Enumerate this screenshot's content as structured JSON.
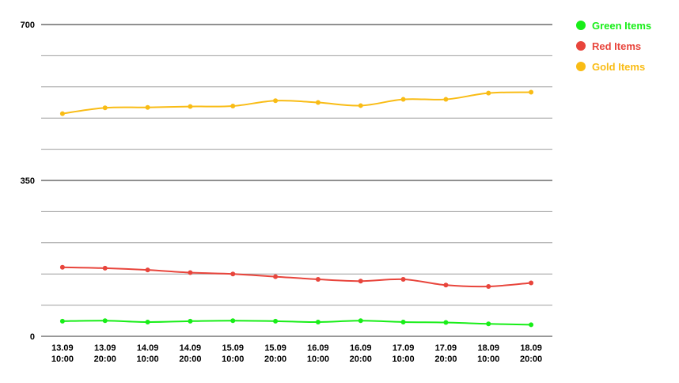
{
  "chart_data": {
    "type": "line",
    "title": "",
    "xlabel": "",
    "ylabel": "",
    "ylim": [
      0,
      700
    ],
    "y_ticks": [
      "0",
      "350",
      "700"
    ],
    "grid": true,
    "legend_position": "right",
    "categories": [
      [
        "13.09",
        "10:00"
      ],
      [
        "13.09",
        "20:00"
      ],
      [
        "14.09",
        "10:00"
      ],
      [
        "14.09",
        "20:00"
      ],
      [
        "15.09",
        "10:00"
      ],
      [
        "15.09",
        "20:00"
      ],
      [
        "16.09",
        "10:00"
      ],
      [
        "16.09",
        "20:00"
      ],
      [
        "17.09",
        "10:00"
      ],
      [
        "17.09",
        "20:00"
      ],
      [
        "18.09",
        "10:00"
      ],
      [
        "18.09",
        "20:00"
      ]
    ],
    "series": [
      {
        "name": "Green Items",
        "color": "#18ee18",
        "values": [
          34,
          35,
          32,
          34,
          35,
          34,
          32,
          35,
          32,
          31,
          28,
          26
        ]
      },
      {
        "name": "Red Items",
        "color": "#e8453c",
        "values": [
          155,
          153,
          149,
          143,
          140,
          134,
          128,
          124,
          128,
          115,
          112,
          120
        ]
      },
      {
        "name": "Gold Items",
        "color": "#f9bc15",
        "values": [
          500,
          513,
          514,
          516,
          517,
          529,
          525,
          518,
          532,
          532,
          546,
          548
        ]
      }
    ]
  }
}
